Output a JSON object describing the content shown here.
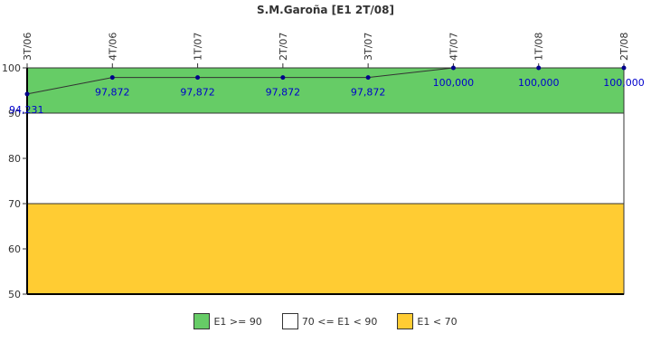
{
  "chart_data": {
    "type": "line",
    "title": "S.M.Garoña [E1 2T/08]",
    "categories": [
      "3T/06",
      "4T/06",
      "1T/07",
      "2T/07",
      "3T/07",
      "4T/07",
      "1T/08",
      "2T/08"
    ],
    "series": [
      {
        "values": [
          94.231,
          97.872,
          97.872,
          97.872,
          97.872,
          100.0,
          100.0,
          100.0
        ],
        "labels": [
          "94,231",
          "97,872",
          "97,872",
          "97,872",
          "97,872",
          "100,000",
          "100,000",
          "100,000"
        ],
        "line_color": "#333333",
        "marker_color": "#00008b",
        "label_color": "#0000cc"
      }
    ],
    "ylim": [
      50,
      100
    ],
    "yticks": [
      50,
      60,
      70,
      80,
      90,
      100
    ],
    "bands": [
      {
        "from": 90,
        "to": 100,
        "color": "#66cc66",
        "label": "E1 >= 90"
      },
      {
        "from": 70,
        "to": 90,
        "color": "#ffffff",
        "label": "70 <= E1 < 90"
      },
      {
        "from": 50,
        "to": 70,
        "color": "#ffcc33",
        "label": "E1 < 70"
      }
    ],
    "legend": {
      "position": "bottom"
    },
    "grid": false
  }
}
